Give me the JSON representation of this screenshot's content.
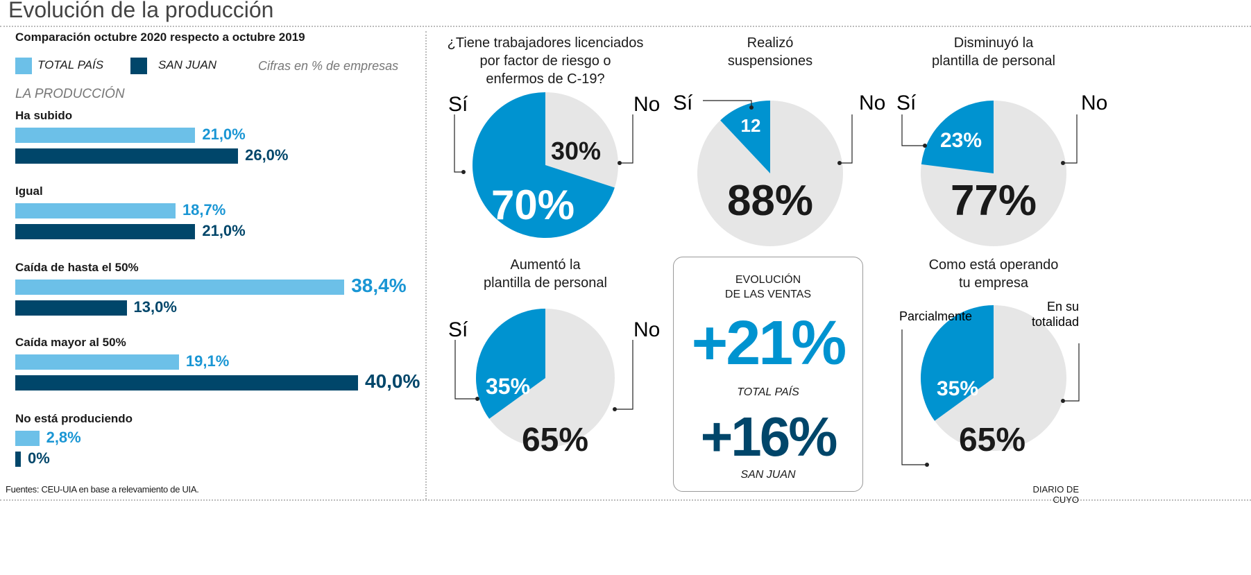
{
  "title": "Evolución de la producción",
  "subtitle": "Comparación octubre 2020 respecto a octubre 2019",
  "legend": [
    {
      "label": "TOTAL PAÍS",
      "color": "#6cc0e8"
    },
    {
      "label": "SAN JUAN",
      "color": "#00466a"
    }
  ],
  "units_note": "Cifras en % de empresas",
  "section_label": "LA PRODUCCIÓN",
  "colors": {
    "total_value": "#1a96d4",
    "sanjuan_value": "#00466a",
    "pie_yes": "#0093d0",
    "pie_no": "#e6e6e6"
  },
  "chart_data": [
    {
      "type": "bar",
      "orientation": "horizontal",
      "categories": [
        "Ha subido",
        "Igual",
        "Caída de hasta el 50%",
        "Caída mayor al 50%",
        "No está produciendo"
      ],
      "series": [
        {
          "name": "TOTAL PAÍS",
          "values": [
            21.0,
            18.7,
            38.4,
            19.1,
            2.8
          ],
          "labels": [
            "21,0%",
            "18,7%",
            "38,4%",
            "19,1%",
            "2,8%"
          ]
        },
        {
          "name": "SAN JUAN",
          "values": [
            26.0,
            21.0,
            13.0,
            40.0,
            0
          ],
          "labels": [
            "26,0%",
            "21,0%",
            "13,0%",
            "40,0%",
            "0%"
          ]
        }
      ]
    },
    {
      "type": "pie",
      "title": [
        "¿Tiene trabajadores licenciados",
        "por factor de riesgo o",
        "enfermos de C-19?"
      ],
      "categories": [
        "Sí",
        "No"
      ],
      "values": [
        70,
        30
      ],
      "labels": [
        "70%",
        "30%"
      ]
    },
    {
      "type": "pie",
      "title": [
        "Realizó",
        "suspensiones"
      ],
      "categories": [
        "Sí",
        "No"
      ],
      "values": [
        12,
        88
      ],
      "labels": [
        "12",
        "88%"
      ]
    },
    {
      "type": "pie",
      "title": [
        "Disminuyó la",
        "plantilla de personal"
      ],
      "categories": [
        "Sí",
        "No"
      ],
      "values": [
        23,
        77
      ],
      "labels": [
        "23%",
        "77%"
      ]
    },
    {
      "type": "pie",
      "title": [
        "Aumentó la",
        "plantilla de personal"
      ],
      "categories": [
        "Sí",
        "No"
      ],
      "values": [
        35,
        65
      ],
      "labels": [
        "35%",
        "65%"
      ]
    },
    {
      "type": "pie",
      "title": [
        "Como está operando",
        "tu empresa"
      ],
      "categories": [
        "Parcialmente",
        "En su totalidad"
      ],
      "values": [
        35,
        65
      ],
      "labels": [
        "35%",
        "65%"
      ]
    }
  ],
  "sales": {
    "title": [
      "EVOLUCIÓN",
      "DE LAS VENTAS"
    ],
    "total_value": "+21%",
    "total_label": "TOTAL PAÍS",
    "sj_value": "+16%",
    "sj_label": "SAN JUAN"
  },
  "footer": {
    "source": "Fuentes: CEU-UIA en base a relevamiento de UIA.",
    "brand": "DIARIO DE CUYO"
  }
}
